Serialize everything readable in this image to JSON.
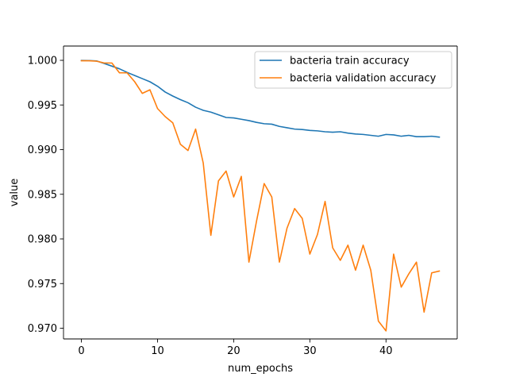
{
  "chart_data": {
    "type": "line",
    "title": "",
    "xlabel": "num_epochs",
    "ylabel": "value",
    "xlim": [
      -2.35,
      49.35
    ],
    "ylim": [
      0.9688,
      1.0016
    ],
    "xticks": [
      0,
      10,
      20,
      30,
      40
    ],
    "yticks": [
      0.97,
      0.975,
      0.98,
      0.985,
      0.99,
      0.995,
      1.0
    ],
    "ytick_labels": [
      "0.970",
      "0.975",
      "0.980",
      "0.985",
      "0.990",
      "0.995",
      "1.000"
    ],
    "grid": false,
    "legend_position": "upper right",
    "x": [
      0,
      1,
      2,
      3,
      4,
      5,
      6,
      7,
      8,
      9,
      10,
      11,
      12,
      13,
      14,
      15,
      16,
      17,
      18,
      19,
      20,
      21,
      22,
      23,
      24,
      25,
      26,
      27,
      28,
      29,
      30,
      31,
      32,
      33,
      34,
      35,
      36,
      37,
      38,
      39,
      40,
      41,
      42,
      43,
      44,
      45,
      46,
      47
    ],
    "series": [
      {
        "name": "bacteria train accuracy",
        "color": "#1f77b4",
        "values": [
          0.99998,
          0.99997,
          0.99993,
          0.99965,
          0.99935,
          0.99905,
          0.99865,
          0.9983,
          0.99795,
          0.9976,
          0.9971,
          0.99645,
          0.996,
          0.9956,
          0.99525,
          0.99475,
          0.9944,
          0.9942,
          0.9939,
          0.9936,
          0.99355,
          0.9934,
          0.99325,
          0.99305,
          0.9929,
          0.99285,
          0.9926,
          0.99245,
          0.9923,
          0.99225,
          0.99215,
          0.9921,
          0.992,
          0.99195,
          0.992,
          0.99185,
          0.99175,
          0.9917,
          0.9916,
          0.9915,
          0.9917,
          0.99165,
          0.9915,
          0.9916,
          0.99145,
          0.99145,
          0.9915,
          0.9914
        ]
      },
      {
        "name": "bacteria validation accuracy",
        "color": "#ff7f0e",
        "values": [
          0.99995,
          0.99995,
          0.9999,
          0.9997,
          0.9997,
          0.9986,
          0.9986,
          0.9976,
          0.9963,
          0.9967,
          0.9946,
          0.9937,
          0.993,
          0.9906,
          0.9899,
          0.9923,
          0.9885,
          0.9804,
          0.9865,
          0.9876,
          0.9847,
          0.987,
          0.9774,
          0.982,
          0.9862,
          0.9847,
          0.9774,
          0.9812,
          0.9834,
          0.9823,
          0.9783,
          0.9805,
          0.9842,
          0.979,
          0.9776,
          0.9793,
          0.9765,
          0.9793,
          0.9765,
          0.9708,
          0.9697,
          0.9783,
          0.9746,
          0.9761,
          0.9774,
          0.9718,
          0.9762,
          0.9764
        ]
      }
    ]
  }
}
